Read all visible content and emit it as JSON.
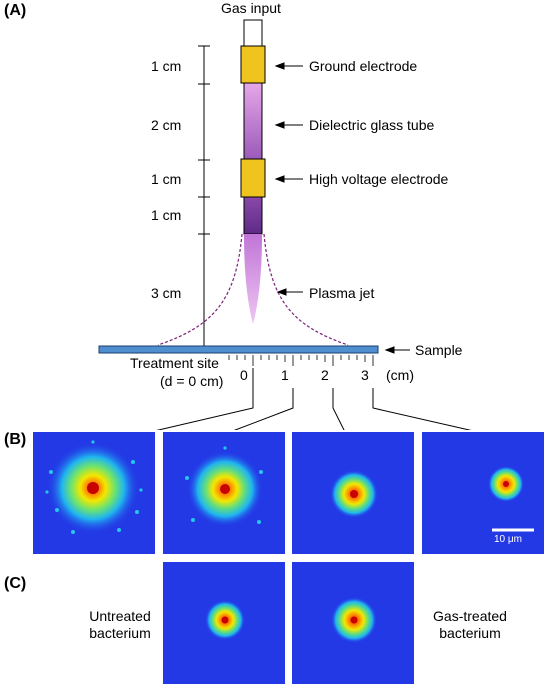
{
  "panels": {
    "a": "(A)",
    "b": "(B)",
    "c": "(C)"
  },
  "setup": {
    "gas_input": "Gas input",
    "segments": [
      {
        "length": "1 cm",
        "part": "Ground electrode",
        "color": "#f0c41e"
      },
      {
        "length": "2 cm",
        "part": "Dielectric glass tube",
        "color": "#c79ad9"
      },
      {
        "length": "1 cm",
        "part": "High voltage electrode",
        "color": "#f0c41e"
      },
      {
        "length": "1 cm",
        "part": ""
      },
      {
        "length": "3 cm",
        "part": "Plasma jet",
        "color": "#d69ae6"
      }
    ],
    "sample": "Sample",
    "treatment_site": "Treatment site",
    "treatment_site_d": "(d = 0 cm)",
    "ruler": {
      "ticks": [
        "0",
        "1",
        "2",
        "3"
      ],
      "unit": "(cm)",
      "color": "#4f8fd0"
    }
  },
  "images_b": [
    {
      "position": "0 cm",
      "spot": "large"
    },
    {
      "position": "1 cm",
      "spot": "medium"
    },
    {
      "position": "2 cm",
      "spot": "small"
    },
    {
      "position": "3 cm",
      "spot": "tiny"
    }
  ],
  "scale_bar": "10 μm",
  "panel_c": {
    "left_label": [
      "Untreated",
      "bacterium"
    ],
    "right_label": [
      "Gas-treated",
      "bacterium"
    ]
  },
  "colors": {
    "background": "#2339e6",
    "hot": "#ff1a00",
    "glass": "#b07cc8",
    "electrode": "#f0c41e"
  }
}
